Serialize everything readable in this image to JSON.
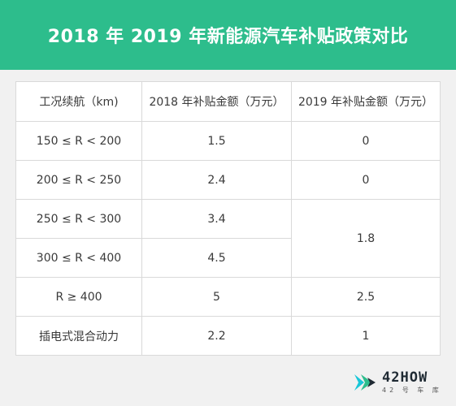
{
  "header": {
    "title": "2018 年 2019 年新能源汽车补贴政策对比"
  },
  "table": {
    "columns": [
      "工况续航（km)",
      "2018 年补贴金额（万元）",
      "2019 年补贴金额（万元）"
    ],
    "rows": [
      {
        "range": "150 ≤ R < 200",
        "y2018": "1.5",
        "y2019": "0"
      },
      {
        "range": "200 ≤ R < 250",
        "y2018": "2.4",
        "y2019": "0"
      },
      {
        "range": "250 ≤ R < 300",
        "y2018": "3.4",
        "y2019": "1.8"
      },
      {
        "range": "300 ≤ R < 400",
        "y2018": "4.5"
      },
      {
        "range": "R ≥ 400",
        "y2018": "5",
        "y2019": "2.5"
      },
      {
        "range": "插电式混合动力",
        "y2018": "2.2",
        "y2019": "1"
      }
    ]
  },
  "logo": {
    "brand": "42HOW",
    "subtitle": "42 号 车 库",
    "colors": {
      "green": "#2dbd8c",
      "cyan": "#18c6d8",
      "dark": "#1f2a33"
    },
    "icon": "42how-logo-icon"
  }
}
